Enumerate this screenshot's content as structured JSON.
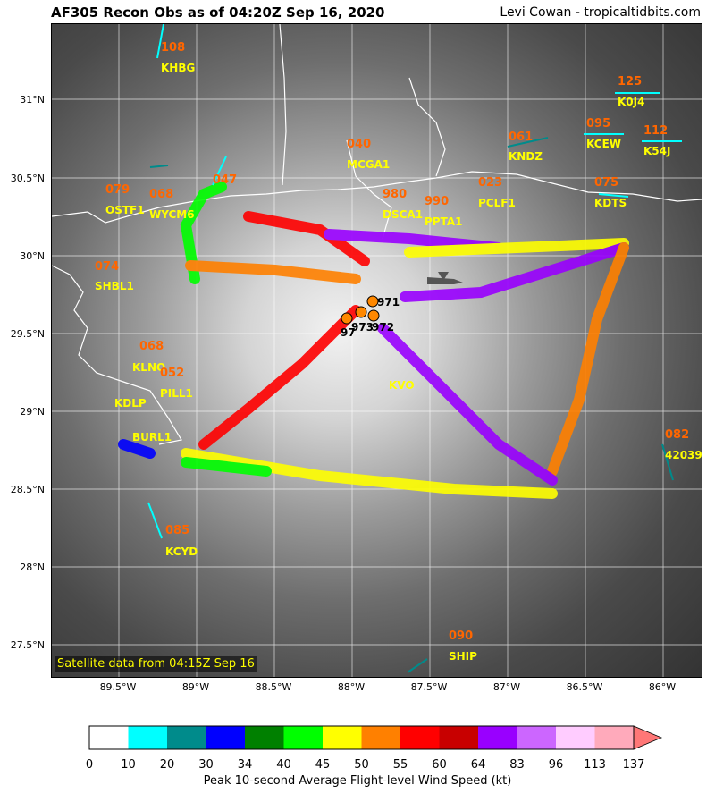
{
  "title_left": "AF305 Recon Obs as of 04:20Z Sep 16, 2020",
  "title_right": "Levi Cowan - tropicaltidbits.com",
  "satellite_note": "Satellite data from 04:15Z Sep 16",
  "y_ticks": [
    "31°N",
    "30.5°N",
    "30°N",
    "29.5°N",
    "29°N",
    "28.5°N",
    "28°N",
    "27.5°N"
  ],
  "x_ticks": [
    "89.5°W",
    "89°W",
    "88.5°W",
    "88°W",
    "87.5°W",
    "87°W",
    "86.5°W",
    "86°W"
  ],
  "stations": [
    {
      "id": "KHBG",
      "value": "108"
    },
    {
      "id": "K0J4",
      "value": "125"
    },
    {
      "id": "KNDZ",
      "value": "061"
    },
    {
      "id": "KCEW",
      "value": "095"
    },
    {
      "id": "K54J",
      "value": "112"
    },
    {
      "id": "MCGA1",
      "value": "040"
    },
    {
      "id": "OSTF1",
      "value": "079"
    },
    {
      "id": "WYCM6",
      "value": "068"
    },
    {
      "id": "",
      "value": "047"
    },
    {
      "id": "DSCA1",
      "value": "980"
    },
    {
      "id": "PPTA1",
      "value": "990"
    },
    {
      "id": "PCLF1",
      "value": "023"
    },
    {
      "id": "KDTS",
      "value": "075"
    },
    {
      "id": "SHBL1",
      "value": "074"
    },
    {
      "id": "KLNO",
      "value": "068"
    },
    {
      "id": "PILL1",
      "value": "052"
    },
    {
      "id": "KDLP",
      "value": ""
    },
    {
      "id": "BURL1",
      "value": ""
    },
    {
      "id": "42039",
      "value": "082"
    },
    {
      "id": "KCYD",
      "value": "085"
    },
    {
      "id": "SHIP",
      "value": "090"
    },
    {
      "id": "KVO",
      "value": ""
    }
  ],
  "pressure_obs": [
    "971",
    "973",
    "972",
    "97"
  ],
  "colorbar": {
    "label": "Peak 10-second Average Flight-level Wind Speed (kt)",
    "ticks": [
      "0",
      "10",
      "20",
      "30",
      "34",
      "40",
      "45",
      "50",
      "55",
      "60",
      "64",
      "83",
      "96",
      "113",
      "137"
    ],
    "colors": [
      "#ffffff",
      "#00ffff",
      "#008b8b",
      "#0000ff",
      "#008000",
      "#00ff00",
      "#ffff00",
      "#ff8000",
      "#ff0000",
      "#c80000",
      "#9900ff",
      "#cc66ff",
      "#ffccff",
      "#ffaabb"
    ],
    "extend_color": "#ff7777"
  },
  "flight_track": [
    {
      "from": "NW",
      "to": "center",
      "peak_kt": 64
    },
    {
      "from": "center",
      "to": "E",
      "peak_kt": 83
    },
    {
      "from": "E",
      "to": "SE",
      "peak_kt": 55
    },
    {
      "from": "SE",
      "to": "center",
      "peak_kt": 83
    },
    {
      "from": "center",
      "to": "SW",
      "peak_kt": 50
    },
    {
      "from": "SW",
      "to": "SE",
      "peak_kt": 40
    }
  ]
}
